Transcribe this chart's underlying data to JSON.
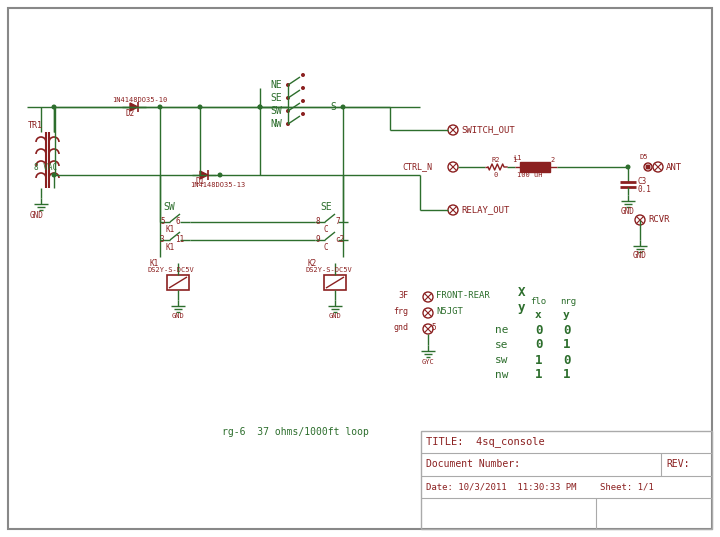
{
  "bg_color": "#ffffff",
  "border_color": "#aaaaaa",
  "wire_color": "#2d6e2d",
  "component_color": "#8b2020",
  "text_color_green": "#2d6e2d",
  "text_color_red": "#8b2020",
  "title_lines": [
    "TITLE:  4sq_console",
    "Document Number:",
    "REV:",
    "Date: 10/3/2011  11:30:33 PM",
    "Sheet: 1/1"
  ],
  "note": "rg-6  37 ohms/1000ft loop",
  "truth_rows": [
    [
      "ne",
      "0",
      "0"
    ],
    [
      "se",
      "0",
      "1"
    ],
    [
      "sw",
      "1",
      "0"
    ],
    [
      "nw",
      "1",
      "1"
    ]
  ]
}
